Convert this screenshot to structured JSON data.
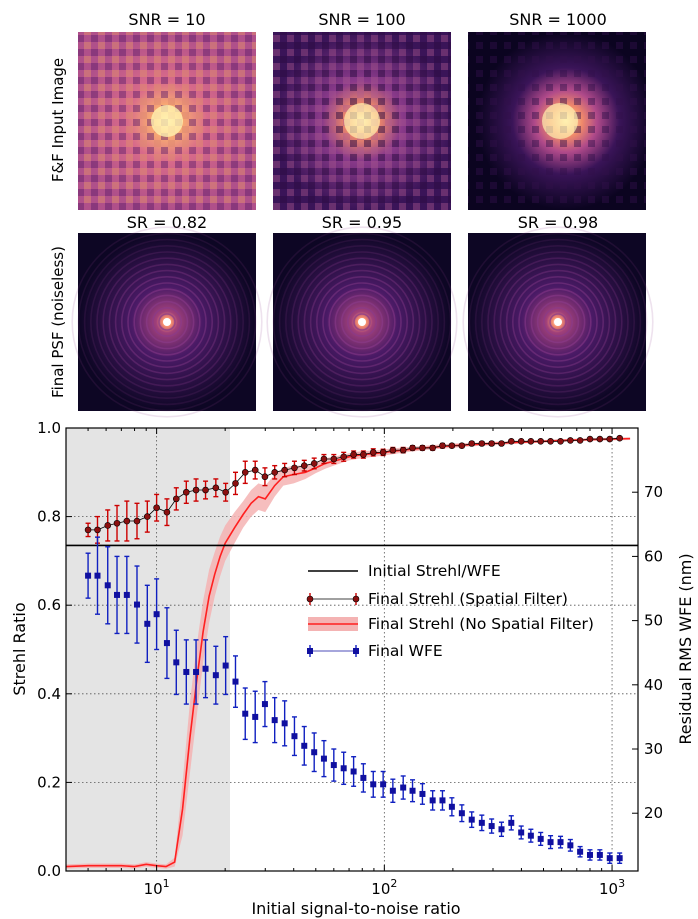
{
  "images": {
    "row_labels": [
      "F&F Input Image",
      "Final PSF (noiseless)"
    ],
    "top_titles": [
      "SNR = 10",
      "SNR = 100",
      "SNR = 1000"
    ],
    "bottom_titles": [
      "SR = 0.82",
      "SR = 0.95",
      "SR = 0.98"
    ]
  },
  "chart_data": {
    "type": "scatter",
    "xlabel": "Initial signal-to-noise ratio",
    "ylabel": "Strehl Ratio",
    "ylabel_right": "Residual RMS WFE (nm)",
    "xscale": "log",
    "xlim": [
      4,
      1300
    ],
    "ylim": [
      0,
      1.0
    ],
    "ylim_right": [
      11,
      80
    ],
    "x_tick_labels": [
      "10^1",
      "10^2",
      "10^3"
    ],
    "y_ticks": [
      0.0,
      0.2,
      0.4,
      0.6,
      0.8,
      1.0
    ],
    "y_tick_labels": [
      "0.0",
      "0.2",
      "0.4",
      "0.6",
      "0.8",
      "1.0"
    ],
    "y_right_ticks": [
      20,
      30,
      40,
      50,
      60,
      70
    ],
    "grid": true,
    "legend_position": "center-right",
    "shaded_region_x": [
      4,
      21
    ],
    "series": [
      {
        "name": "Initial Strehl/WFE",
        "kind": "hline",
        "color": "#000000",
        "y": 0.735
      },
      {
        "name": "Final Strehl (Spatial Filter)",
        "kind": "errorbar",
        "color": "#cc0000",
        "marker": "circle",
        "axis": "left",
        "x": [
          5,
          5.5,
          6.1,
          6.7,
          7.4,
          8.2,
          9.1,
          10,
          11.1,
          12.2,
          13.5,
          14.9,
          16.4,
          18.2,
          20.1,
          22.2,
          24.5,
          27.1,
          29.9,
          33,
          36.5,
          40.3,
          44.5,
          49.2,
          54.3,
          60,
          66.3,
          73.3,
          80.9,
          89.4,
          98.8,
          109,
          121,
          133,
          147,
          163,
          180,
          198,
          219,
          242,
          268,
          296,
          327,
          361,
          399,
          440,
          486,
          537,
          594,
          656,
          724,
          800,
          884,
          977,
          1080
        ],
        "y": [
          0.77,
          0.77,
          0.78,
          0.785,
          0.79,
          0.79,
          0.8,
          0.82,
          0.81,
          0.84,
          0.855,
          0.86,
          0.86,
          0.865,
          0.855,
          0.875,
          0.9,
          0.905,
          0.89,
          0.9,
          0.905,
          0.91,
          0.915,
          0.92,
          0.93,
          0.93,
          0.935,
          0.94,
          0.94,
          0.945,
          0.945,
          0.95,
          0.95,
          0.955,
          0.955,
          0.955,
          0.96,
          0.96,
          0.96,
          0.965,
          0.965,
          0.965,
          0.965,
          0.97,
          0.97,
          0.97,
          0.97,
          0.97,
          0.97,
          0.972,
          0.972,
          0.975,
          0.975,
          0.975,
          0.977
        ],
        "yerr": [
          0.015,
          0.03,
          0.035,
          0.04,
          0.045,
          0.04,
          0.035,
          0.03,
          0.03,
          0.025,
          0.025,
          0.025,
          0.02,
          0.02,
          0.02,
          0.025,
          0.025,
          0.02,
          0.02,
          0.015,
          0.015,
          0.015,
          0.012,
          0.012,
          0.01,
          0.01,
          0.01,
          0.008,
          0.008,
          0.008,
          0.007,
          0.006,
          0.006,
          0.005,
          0.005,
          0.005,
          0.005,
          0.004,
          0.004,
          0.004,
          0.004,
          0.004,
          0.003,
          0.003,
          0.003,
          0.003,
          0.003,
          0.003,
          0.003,
          0.003,
          0.003,
          0.003,
          0.003,
          0.003,
          0.003
        ]
      },
      {
        "name": "Final Strehl (No Spatial Filter)",
        "kind": "line_band",
        "color": "#ff2020",
        "band_color": "#f4b3b3",
        "axis": "left",
        "x": [
          4,
          5,
          6,
          7,
          8,
          9,
          10,
          11,
          12,
          13,
          14,
          15,
          16,
          17,
          18,
          19,
          20,
          22,
          24,
          26,
          28,
          30,
          33,
          36,
          40,
          45,
          50,
          55,
          60,
          70,
          80,
          90,
          100,
          120,
          150,
          200,
          250,
          300,
          400,
          500,
          600,
          800,
          1000,
          1200
        ],
        "y": [
          0.01,
          0.012,
          0.012,
          0.012,
          0.01,
          0.015,
          0.012,
          0.01,
          0.02,
          0.14,
          0.3,
          0.43,
          0.54,
          0.62,
          0.67,
          0.71,
          0.74,
          0.775,
          0.805,
          0.83,
          0.845,
          0.84,
          0.87,
          0.89,
          0.895,
          0.9,
          0.91,
          0.92,
          0.925,
          0.935,
          0.94,
          0.942,
          0.945,
          0.95,
          0.955,
          0.96,
          0.963,
          0.965,
          0.968,
          0.97,
          0.972,
          0.974,
          0.975,
          0.976
        ],
        "yerr": [
          0.005,
          0.005,
          0.005,
          0.005,
          0.005,
          0.005,
          0.005,
          0.005,
          0.01,
          0.06,
          0.08,
          0.08,
          0.07,
          0.06,
          0.05,
          0.045,
          0.04,
          0.035,
          0.03,
          0.03,
          0.03,
          0.03,
          0.025,
          0.02,
          0.02,
          0.015,
          0.012,
          0.012,
          0.01,
          0.008,
          0.008,
          0.007,
          0.007,
          0.006,
          0.005,
          0.005,
          0.004,
          0.004,
          0.003,
          0.003,
          0.003,
          0.003,
          0.003,
          0.003
        ]
      },
      {
        "name": "Final WFE",
        "kind": "errorbar",
        "color": "#1010a0",
        "marker": "square",
        "axis": "right",
        "x": [
          5,
          5.5,
          6.1,
          6.7,
          7.4,
          8.2,
          9.1,
          10,
          11.1,
          12.2,
          13.5,
          14.9,
          16.4,
          18.2,
          20.1,
          22.2,
          24.5,
          27.1,
          29.9,
          33,
          36.5,
          40.3,
          44.5,
          49.2,
          54.3,
          60,
          66.3,
          73.3,
          80.9,
          89.4,
          98.8,
          109,
          121,
          133,
          147,
          163,
          180,
          198,
          219,
          242,
          268,
          296,
          327,
          361,
          399,
          440,
          486,
          537,
          594,
          656,
          724,
          800,
          884,
          977,
          1080
        ],
        "y": [
          57,
          57,
          55.5,
          54,
          54,
          52.5,
          49.5,
          51,
          46.5,
          43.5,
          42,
          42,
          42.5,
          41.5,
          43,
          40.5,
          35.5,
          35,
          37,
          34.5,
          34,
          32,
          30.5,
          29.5,
          28.5,
          27.5,
          27,
          26.5,
          25.5,
          24.5,
          24.5,
          23.5,
          24,
          23.5,
          23,
          22,
          22,
          21,
          20,
          19,
          18.5,
          18,
          17.5,
          18.5,
          17,
          16.5,
          16,
          15.5,
          15.5,
          15,
          14,
          13.5,
          13.5,
          13,
          13
        ],
        "yerr": [
          3.5,
          6,
          6,
          6,
          6,
          6,
          6,
          5.5,
          5.5,
          5,
          5,
          5,
          4.5,
          4.5,
          4.5,
          4,
          4,
          4,
          3.5,
          3.5,
          3.5,
          3,
          3,
          3,
          2.8,
          2.5,
          2.5,
          2.3,
          2.2,
          2,
          2,
          1.8,
          1.8,
          1.7,
          1.6,
          1.5,
          1.5,
          1.4,
          1.3,
          1.2,
          1.2,
          1.1,
          1.1,
          1.1,
          1,
          1,
          1,
          1,
          0.9,
          0.9,
          0.8,
          0.8,
          0.8,
          0.8,
          0.8
        ]
      }
    ]
  }
}
